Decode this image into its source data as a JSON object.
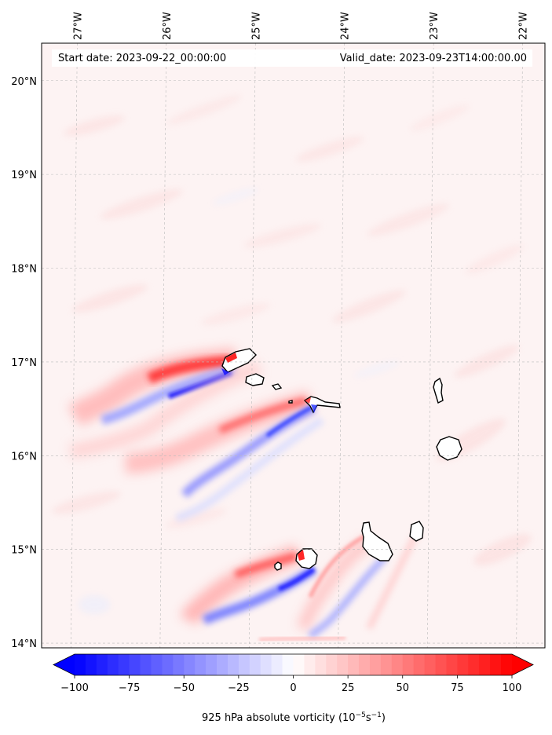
{
  "header": {
    "start_label": "Start date: 2023-09-22_00:00:00",
    "valid_label": "Valid_date: 2023-09-23T14:00:00.00"
  },
  "map": {
    "lon_range": [
      -27.4,
      -21.75
    ],
    "lat_range": [
      13.95,
      20.4
    ],
    "lon_ticks": [
      {
        "value": -27,
        "label": "27°W"
      },
      {
        "value": -26,
        "label": "26°W"
      },
      {
        "value": -25,
        "label": "25°W"
      },
      {
        "value": -24,
        "label": "24°W"
      },
      {
        "value": -23,
        "label": "23°W"
      },
      {
        "value": -22,
        "label": "22°W"
      }
    ],
    "lat_ticks": [
      {
        "value": 20,
        "label": "20°N"
      },
      {
        "value": 19,
        "label": "19°N"
      },
      {
        "value": 18,
        "label": "18°N"
      },
      {
        "value": 17,
        "label": "17°N"
      },
      {
        "value": 16,
        "label": "16°N"
      },
      {
        "value": 15,
        "label": "15°N"
      },
      {
        "value": 14,
        "label": "14°N"
      }
    ],
    "gridlines": true,
    "field_colors": {
      "positive": "#ff0000",
      "negative": "#0000ff",
      "neutral": "#ffffff"
    }
  },
  "colorbar": {
    "label": "925 hPa absolute vorticity (10",
    "label_exp1": "−5",
    "label_mid": "s",
    "label_exp2": "−1",
    "label_end": ")",
    "ticks": [
      {
        "value": -100,
        "label": "−100"
      },
      {
        "value": -75,
        "label": "−75"
      },
      {
        "value": -50,
        "label": "−50"
      },
      {
        "value": -25,
        "label": "−25"
      },
      {
        "value": 0,
        "label": "0"
      },
      {
        "value": 25,
        "label": "25"
      },
      {
        "value": 50,
        "label": "50"
      },
      {
        "value": 75,
        "label": "75"
      },
      {
        "value": 100,
        "label": "100"
      }
    ],
    "range": [
      -100,
      100
    ],
    "levels": 40,
    "extend": "both"
  }
}
